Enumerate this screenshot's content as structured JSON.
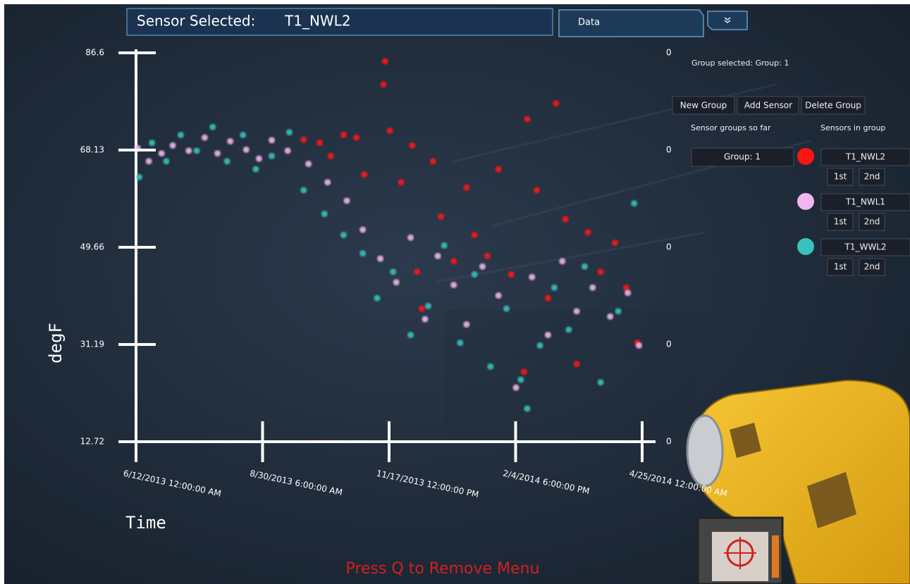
{
  "header": {
    "label": "Sensor Selected:",
    "value": "T1_NWL2"
  },
  "tabs": {
    "data": "Data"
  },
  "panel": {
    "group_selected": "Group selected: Group: 1",
    "buttons": [
      "New Group",
      "Add Sensor",
      "Delete Group"
    ],
    "groups_heading": "Sensor groups so far",
    "sensors_heading": "Sensors in group",
    "groups": [
      "Group: 1"
    ],
    "order_buttons": [
      "1st",
      "2nd"
    ]
  },
  "footer": "Press Q to Remove Menu",
  "chart_data": {
    "type": "scatter",
    "xlabel": "Time",
    "ylabel": "degF",
    "xlim": [
      "2013-06-12T00:00Z",
      "2014-04-25T00:00Z"
    ],
    "xticks": [
      {
        "value": "2013-06-12T00:00Z",
        "label": "6/12/2013 12:00:00 AM"
      },
      {
        "value": "2013-08-30T06:00Z",
        "label": "8/30/2013 6:00:00 AM"
      },
      {
        "value": "2013-11-17T12:00Z",
        "label": "11/17/2013 12:00:00 PM"
      },
      {
        "value": "2014-02-04T18:00Z",
        "label": "2/4/2014 6:00:00 PM"
      },
      {
        "value": "2014-04-25T00:00Z",
        "label": "4/25/2014 12:00:00 AM"
      }
    ],
    "ylim": [
      12.72,
      86.6
    ],
    "yticks": [
      12.72,
      31.19,
      49.66,
      68.13,
      86.6
    ],
    "y2lim": [
      12.72,
      86.6
    ],
    "y2ticks": [
      {
        "value": 12.72,
        "label": "0"
      },
      {
        "value": 31.19,
        "label": "0"
      },
      {
        "value": 49.66,
        "label": "0"
      },
      {
        "value": 68.13,
        "label": "0"
      },
      {
        "value": 86.6,
        "label": "0"
      }
    ],
    "series": [
      {
        "name": "T1_NWL2",
        "color": "#ff1414",
        "x": [
          "2013-09-25",
          "2013-10-05",
          "2013-10-12",
          "2013-10-20",
          "2013-10-28",
          "2013-11-02",
          "2013-11-15",
          "2013-11-14",
          "2013-11-18",
          "2013-11-25",
          "2013-12-02",
          "2013-12-05",
          "2013-12-08",
          "2013-12-15",
          "2013-12-20",
          "2013-12-28",
          "2014-01-05",
          "2014-01-10",
          "2014-01-18",
          "2014-01-25",
          "2014-02-02",
          "2014-02-10",
          "2014-02-12",
          "2014-02-18",
          "2014-02-25",
          "2014-03-02",
          "2014-03-08",
          "2014-03-15",
          "2014-03-22",
          "2014-03-30",
          "2014-04-08",
          "2014-04-15",
          "2014-04-22"
        ],
        "values": [
          70.1,
          69.5,
          67.0,
          71.0,
          70.5,
          63.5,
          85.0,
          80.6,
          71.8,
          62.0,
          69.0,
          45.0,
          38.0,
          66.0,
          55.5,
          47.0,
          61.0,
          52.0,
          48.0,
          64.5,
          44.5,
          26.0,
          74.0,
          60.5,
          40.0,
          77.0,
          55.0,
          27.5,
          52.5,
          45.0,
          50.5,
          42.0,
          31.5
        ]
      },
      {
        "name": "T1_NWL1",
        "color": "#f2b6ee",
        "x": [
          "2013-06-13",
          "2013-06-20",
          "2013-06-28",
          "2013-07-05",
          "2013-07-15",
          "2013-07-25",
          "2013-08-02",
          "2013-08-10",
          "2013-08-20",
          "2013-08-28",
          "2013-09-05",
          "2013-09-15",
          "2013-09-28",
          "2013-10-10",
          "2013-10-22",
          "2013-11-01",
          "2013-11-12",
          "2013-11-22",
          "2013-12-01",
          "2013-12-10",
          "2013-12-18",
          "2013-12-28",
          "2014-01-05",
          "2014-01-15",
          "2014-01-25",
          "2014-02-05",
          "2014-02-15",
          "2014-02-25",
          "2014-03-06",
          "2014-03-15",
          "2014-03-25",
          "2014-04-05",
          "2014-04-16",
          "2014-04-23"
        ],
        "values": [
          68.5,
          66.0,
          67.5,
          69.0,
          68.0,
          70.5,
          67.5,
          69.8,
          68.2,
          66.5,
          70.0,
          68.0,
          65.5,
          62.0,
          58.5,
          53.0,
          47.5,
          43.0,
          51.5,
          36.0,
          48.0,
          42.5,
          35.0,
          46.0,
          40.5,
          23.0,
          44.0,
          33.0,
          47.0,
          37.5,
          42.0,
          36.5,
          41.0,
          31.0
        ]
      },
      {
        "name": "T1_WWL2",
        "color": "#38c2bc",
        "x": [
          "2013-06-14",
          "2013-06-22",
          "2013-07-01",
          "2013-07-10",
          "2013-07-20",
          "2013-07-30",
          "2013-08-08",
          "2013-08-18",
          "2013-08-26",
          "2013-09-05",
          "2013-09-16",
          "2013-09-25",
          "2013-10-08",
          "2013-10-20",
          "2013-11-01",
          "2013-11-10",
          "2013-11-20",
          "2013-12-01",
          "2013-12-12",
          "2013-12-22",
          "2014-01-01",
          "2014-01-10",
          "2014-01-20",
          "2014-01-30",
          "2014-02-08",
          "2014-02-12",
          "2014-02-20",
          "2014-03-01",
          "2014-03-10",
          "2014-03-20",
          "2014-03-30",
          "2014-04-10",
          "2014-04-20"
        ],
        "values": [
          63.0,
          69.5,
          66.0,
          71.0,
          68.0,
          72.5,
          66.0,
          71.0,
          64.5,
          67.0,
          71.5,
          60.5,
          56.0,
          52.0,
          48.5,
          40.0,
          45.0,
          33.0,
          38.5,
          50.0,
          31.5,
          44.5,
          27.0,
          38.0,
          24.5,
          19.0,
          31.0,
          42.0,
          34.0,
          46.0,
          24.0,
          37.5,
          58.0
        ]
      }
    ]
  }
}
